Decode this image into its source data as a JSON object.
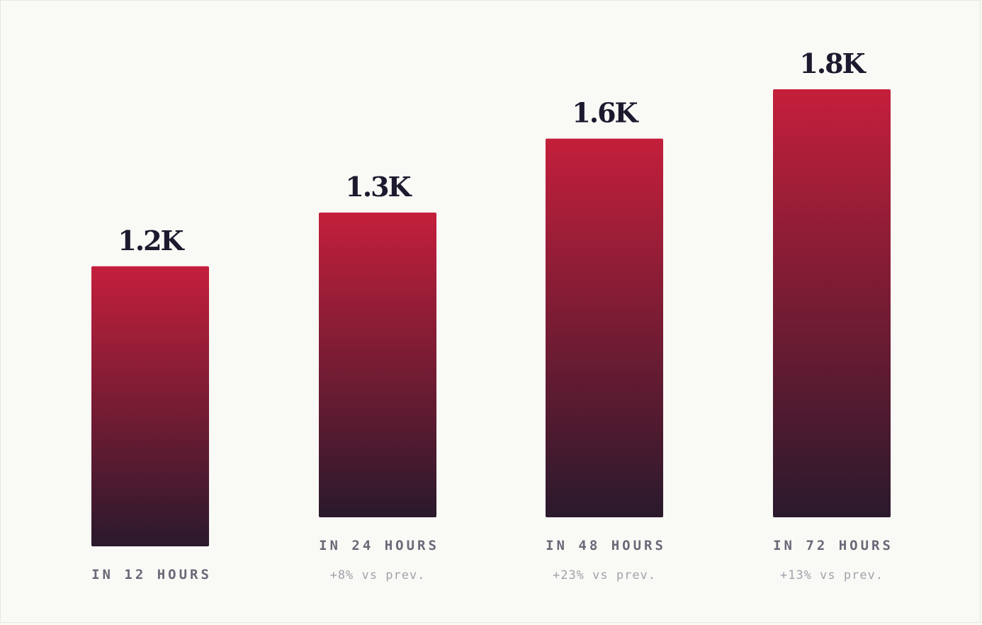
{
  "chart_data": {
    "type": "bar",
    "categories": [
      "IN 12 HOURS",
      "IN 24 HOURS",
      "IN 48 HOURS",
      "IN 72 HOURS"
    ],
    "values": [
      1.2,
      1.3,
      1.6,
      1.8
    ],
    "value_labels": [
      "1.2K",
      "1.3K",
      "1.6K",
      "1.8K"
    ],
    "deltas": [
      "",
      "+8% vs prev.",
      "+23% vs prev.",
      "+13% vs prev."
    ],
    "title": "",
    "xlabel": "",
    "ylabel": "",
    "grid": false,
    "legend": "none",
    "colors": {
      "bar_top": "#c41f3b",
      "bar_bottom": "#2a192c",
      "value_text": "#1c1a2e",
      "category_text": "#6b6878",
      "delta_text": "#a3a1ab",
      "background": "#f9f9f5"
    }
  }
}
